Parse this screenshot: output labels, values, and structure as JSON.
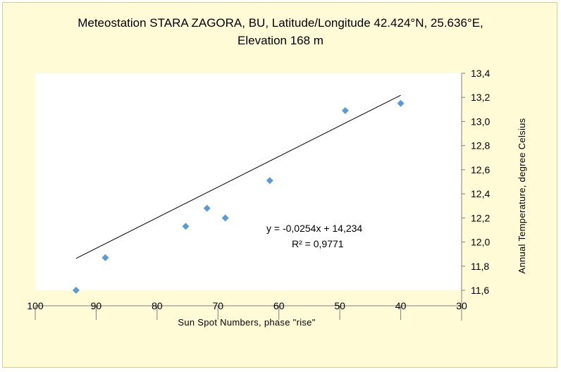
{
  "chart_data": {
    "type": "scatter",
    "title_line1": "Meteostation  STARA ZAGORA, BU, Latitude/Longitude  42.424°N, 25.636°E,",
    "title_line2": "Elevation 168 m",
    "xlabel": "Sun  Spot  Numbers,  phase \"rise\"",
    "ylabel": "Annual  Temperature,  degree Celsius",
    "xlim": [
      30,
      100
    ],
    "x_reversed": true,
    "ylim": [
      11.5,
      13.4
    ],
    "x_ticks": [
      "100",
      "90",
      "80",
      "70",
      "60",
      "50",
      "40",
      "30"
    ],
    "y_ticks": [
      "13,4",
      "13,2",
      "13,0",
      "12,8",
      "12,6",
      "12,4",
      "12,2",
      "12,0",
      "11,8",
      "11,6"
    ],
    "points": [
      {
        "x": 93.3,
        "y": 11.6
      },
      {
        "x": 88.5,
        "y": 11.87
      },
      {
        "x": 75.3,
        "y": 12.13
      },
      {
        "x": 71.8,
        "y": 12.28
      },
      {
        "x": 68.8,
        "y": 12.2
      },
      {
        "x": 61.5,
        "y": 12.51
      },
      {
        "x": 49.1,
        "y": 13.09
      },
      {
        "x": 40.0,
        "y": 13.15
      }
    ],
    "trendline": {
      "slope": -0.0254,
      "intercept": 14.234,
      "x_range": [
        93.3,
        40.0
      ]
    },
    "equation_label": "y = -0,0254x  + 14,234",
    "r2_label": "R² = 0,9771",
    "marker_color": "#5b9bd5",
    "line_color": "#000000",
    "grid": false
  }
}
